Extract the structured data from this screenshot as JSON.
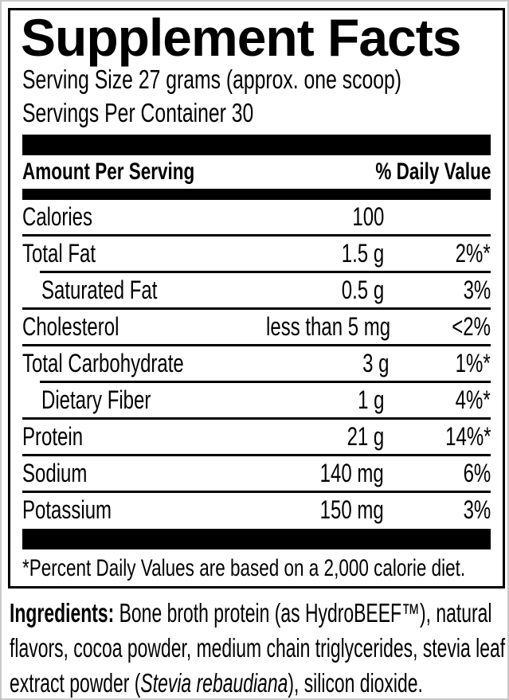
{
  "colors": {
    "text": "#000000",
    "rule_and_bars": "#000000",
    "page_edge": "#c9c9c9",
    "background": "#ffffff"
  },
  "label": {
    "title": "Supplement Facts",
    "serving_size": "Serving Size 27 grams (approx. one scoop)",
    "servings_per_container": "Servings Per Container 30",
    "header": {
      "amount_per_serving": "Amount Per Serving",
      "daily_value": "% Daily Value"
    },
    "rows": [
      {
        "name": "Calories",
        "amount": "100",
        "dv": ""
      },
      {
        "name": "Total Fat",
        "amount": "1.5 g",
        "dv": "2%*"
      },
      {
        "name": "Saturated Fat",
        "amount": "0.5 g",
        "dv": "3%"
      },
      {
        "name": "Cholesterol",
        "amount": "less than 5 mg",
        "dv": "<2%"
      },
      {
        "name": "Total Carbohydrate",
        "amount": "3 g",
        "dv": "1%*"
      },
      {
        "name": "Dietary Fiber",
        "amount": "1 g",
        "dv": "4%*"
      },
      {
        "name": "Protein",
        "amount": "21 g",
        "dv": "14%*"
      },
      {
        "name": "Sodium",
        "amount": "140 mg",
        "dv": "6%"
      },
      {
        "name": "Potassium",
        "amount": "150 mg",
        "dv": "3%"
      }
    ],
    "footnote": "*Percent Daily Values are based on a 2,000 calorie diet."
  },
  "ingredients": {
    "label": "Ingredients:",
    "text_before_italic": " Bone broth protein (as HydroBEEF™), natural flavors, cocoa powder, medium chain triglycerides, stevia leaf extract powder (",
    "italic_species": "Stevia rebaudiana",
    "text_after_italic": "), silicon dioxide."
  }
}
